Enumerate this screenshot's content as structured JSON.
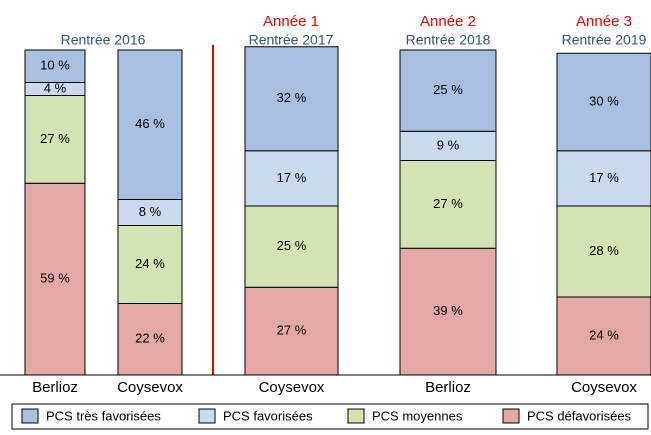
{
  "chart_data": {
    "type": "stacked_bar",
    "categories": [
      "Berlioz",
      "Coysevox",
      "Coysevox",
      "Berlioz",
      "Coysevox"
    ],
    "groups": [
      {
        "label": "Rentrée 2016"
      },
      {
        "year_label": "Année 1",
        "label": "Rentrée 2017"
      },
      {
        "year_label": "Année 2",
        "label": "Rentrée 2018"
      },
      {
        "year_label": "Année 3",
        "label": "Rentrée 2019"
      }
    ],
    "series": [
      {
        "name": "PCS très favorisées",
        "color": "#a9bfe1",
        "values": [
          10,
          46,
          32,
          25,
          30
        ],
        "value_labels": [
          "10 %",
          "46 %",
          "32 %",
          "25 %",
          "30 %"
        ]
      },
      {
        "name": "PCS favorisées",
        "color": "#c9d9ee",
        "values": [
          4,
          8,
          17,
          9,
          17
        ],
        "value_labels": [
          "4 %",
          "8 %",
          "17 %",
          "9 %",
          "17 %"
        ]
      },
      {
        "name": "PCS moyennes",
        "color": "#d4e3b4",
        "values": [
          27,
          24,
          25,
          27,
          28
        ],
        "value_labels": [
          "27 %",
          "24 %",
          "25 %",
          "27 %",
          "28 %"
        ]
      },
      {
        "name": "PCS défavorisées",
        "color": "#e3a9a7",
        "values": [
          59,
          22,
          27,
          39,
          24
        ],
        "value_labels": [
          "59 %",
          "22 %",
          "27 %",
          "39 %",
          "24 %"
        ]
      }
    ],
    "ylim": [
      0,
      100
    ]
  }
}
